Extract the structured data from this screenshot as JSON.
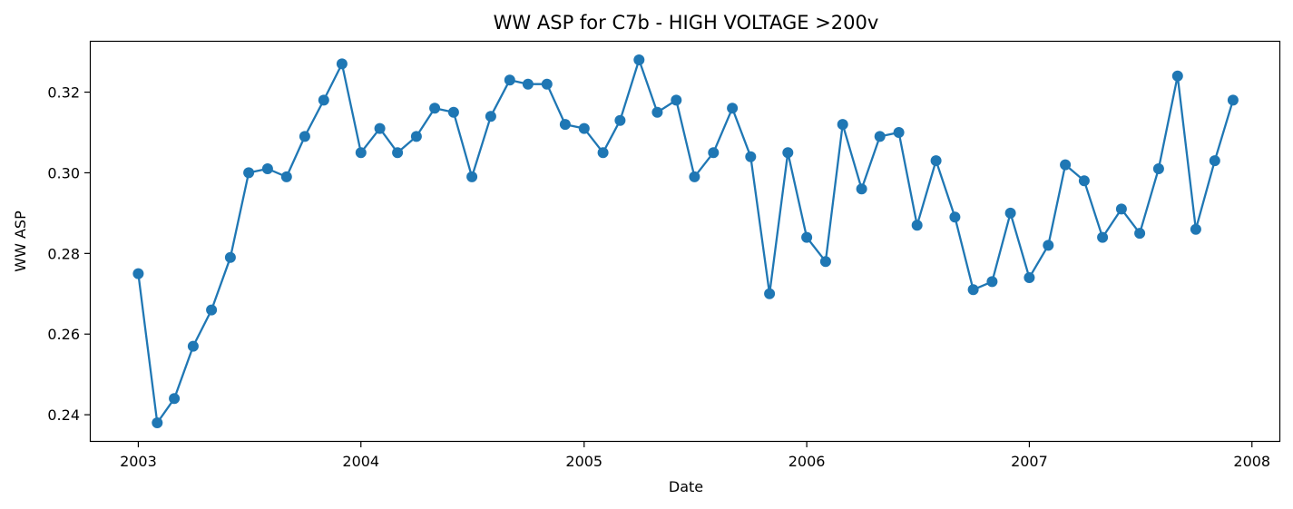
{
  "chart_data": {
    "type": "line",
    "title": "WW ASP for C7b - HIGH VOLTAGE >200v",
    "xlabel": "Date",
    "ylabel": "WW ASP",
    "x_ticks": [
      "2003",
      "2004",
      "2005",
      "2006",
      "2007",
      "2008"
    ],
    "y_ticks": [
      "0.24",
      "0.26",
      "0.28",
      "0.30",
      "0.32"
    ],
    "xlim": [
      "2002-10-15",
      "2008-02-15"
    ],
    "ylim": [
      0.2335,
      0.3325
    ],
    "grid": false,
    "legend": "none",
    "marker": "circle",
    "color": "#1f77b4",
    "series": [
      {
        "x": [
          "2003-01",
          "2003-02",
          "2003-03",
          "2003-04",
          "2003-05",
          "2003-06",
          "2003-07",
          "2003-08",
          "2003-09",
          "2003-10",
          "2003-11",
          "2003-12",
          "2004-01",
          "2004-02",
          "2004-03",
          "2004-04",
          "2004-05",
          "2004-06",
          "2004-07",
          "2004-08",
          "2004-09",
          "2004-10",
          "2004-11",
          "2004-12",
          "2005-01",
          "2005-02",
          "2005-03",
          "2005-04",
          "2005-05",
          "2005-06",
          "2005-07",
          "2005-08",
          "2005-09",
          "2005-10",
          "2005-11",
          "2005-12",
          "2006-01",
          "2006-02",
          "2006-03",
          "2006-04",
          "2006-05",
          "2006-06",
          "2006-07",
          "2006-08",
          "2006-09",
          "2006-10",
          "2006-11",
          "2006-12",
          "2007-01",
          "2007-02",
          "2007-03",
          "2007-04",
          "2007-05",
          "2007-06",
          "2007-07",
          "2007-08",
          "2007-09",
          "2007-10",
          "2007-11",
          "2007-12"
        ],
        "y": [
          0.275,
          0.238,
          0.244,
          0.257,
          0.266,
          0.279,
          0.3,
          0.301,
          0.299,
          0.309,
          0.318,
          0.327,
          0.305,
          0.311,
          0.305,
          0.309,
          0.316,
          0.315,
          0.299,
          0.314,
          0.323,
          0.322,
          0.322,
          0.312,
          0.311,
          0.305,
          0.313,
          0.328,
          0.315,
          0.318,
          0.299,
          0.305,
          0.316,
          0.304,
          0.27,
          0.305,
          0.284,
          0.278,
          0.312,
          0.296,
          0.309,
          0.31,
          0.287,
          0.303,
          0.289,
          0.271,
          0.273,
          0.29,
          0.274,
          0.282,
          0.302,
          0.298,
          0.284,
          0.291,
          0.285,
          0.301,
          0.324,
          0.286,
          0.303,
          0.318
        ]
      }
    ]
  }
}
